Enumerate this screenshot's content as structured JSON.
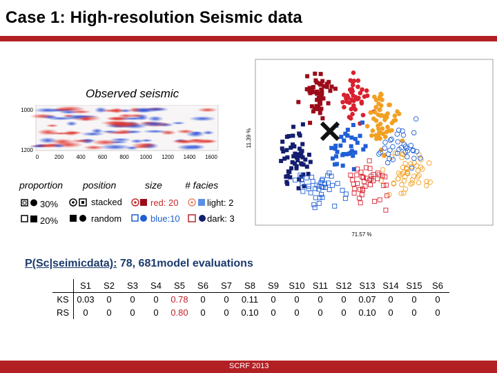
{
  "title": "Case 1: High-resolution Seismic data",
  "seismic": {
    "caption": "Observed seismic",
    "y_ticks": [
      "1000",
      "1200"
    ],
    "x_ticks": [
      "0",
      "200",
      "400",
      "600",
      "800",
      "1000",
      "1200",
      "1400",
      "1600"
    ]
  },
  "scatter": {
    "xlabel": "71.57 %",
    "ylabel": "11.39 %",
    "colors": {
      "dark_red": "#9b0c1a",
      "red": "#d9202e",
      "orange": "#f2a023",
      "blue": "#1f5fd6",
      "navy": "#141e6e"
    }
  },
  "legend": {
    "headers": {
      "proportion": "proportion",
      "position": "position",
      "size": "size",
      "facies": "# facies"
    },
    "proportion": [
      "30%",
      "20%"
    ],
    "position": [
      "stacked",
      "random"
    ],
    "size": [
      "red: 20",
      "blue:10"
    ],
    "facies": [
      "light: 2",
      "dark: 3"
    ]
  },
  "probability": {
    "label": "P(Sc|seimicdata):",
    "text": " 78, 681model evaluations"
  },
  "results": {
    "columns": [
      "S1",
      "S2",
      "S3",
      "S4",
      "S5",
      "S6",
      "S7",
      "S8",
      "S9",
      "S10",
      "S11",
      "S12",
      "S13",
      "S14",
      "S15",
      "S6"
    ],
    "rows": [
      {
        "label": "KS",
        "values": [
          "0.03",
          "0",
          "0",
          "0",
          "0.78",
          "0",
          "0",
          "0.11",
          "0",
          "0",
          "0",
          "0",
          "0.07",
          "0",
          "0",
          "0"
        ]
      },
      {
        "label": "RS",
        "values": [
          "0",
          "0",
          "0",
          "0",
          "0.80",
          "0",
          "0",
          "0.10",
          "0",
          "0",
          "0",
          "0",
          "0.10",
          "0",
          "0",
          "0"
        ]
      }
    ],
    "highlight_column": 4
  },
  "footer": "SCRF 2013"
}
